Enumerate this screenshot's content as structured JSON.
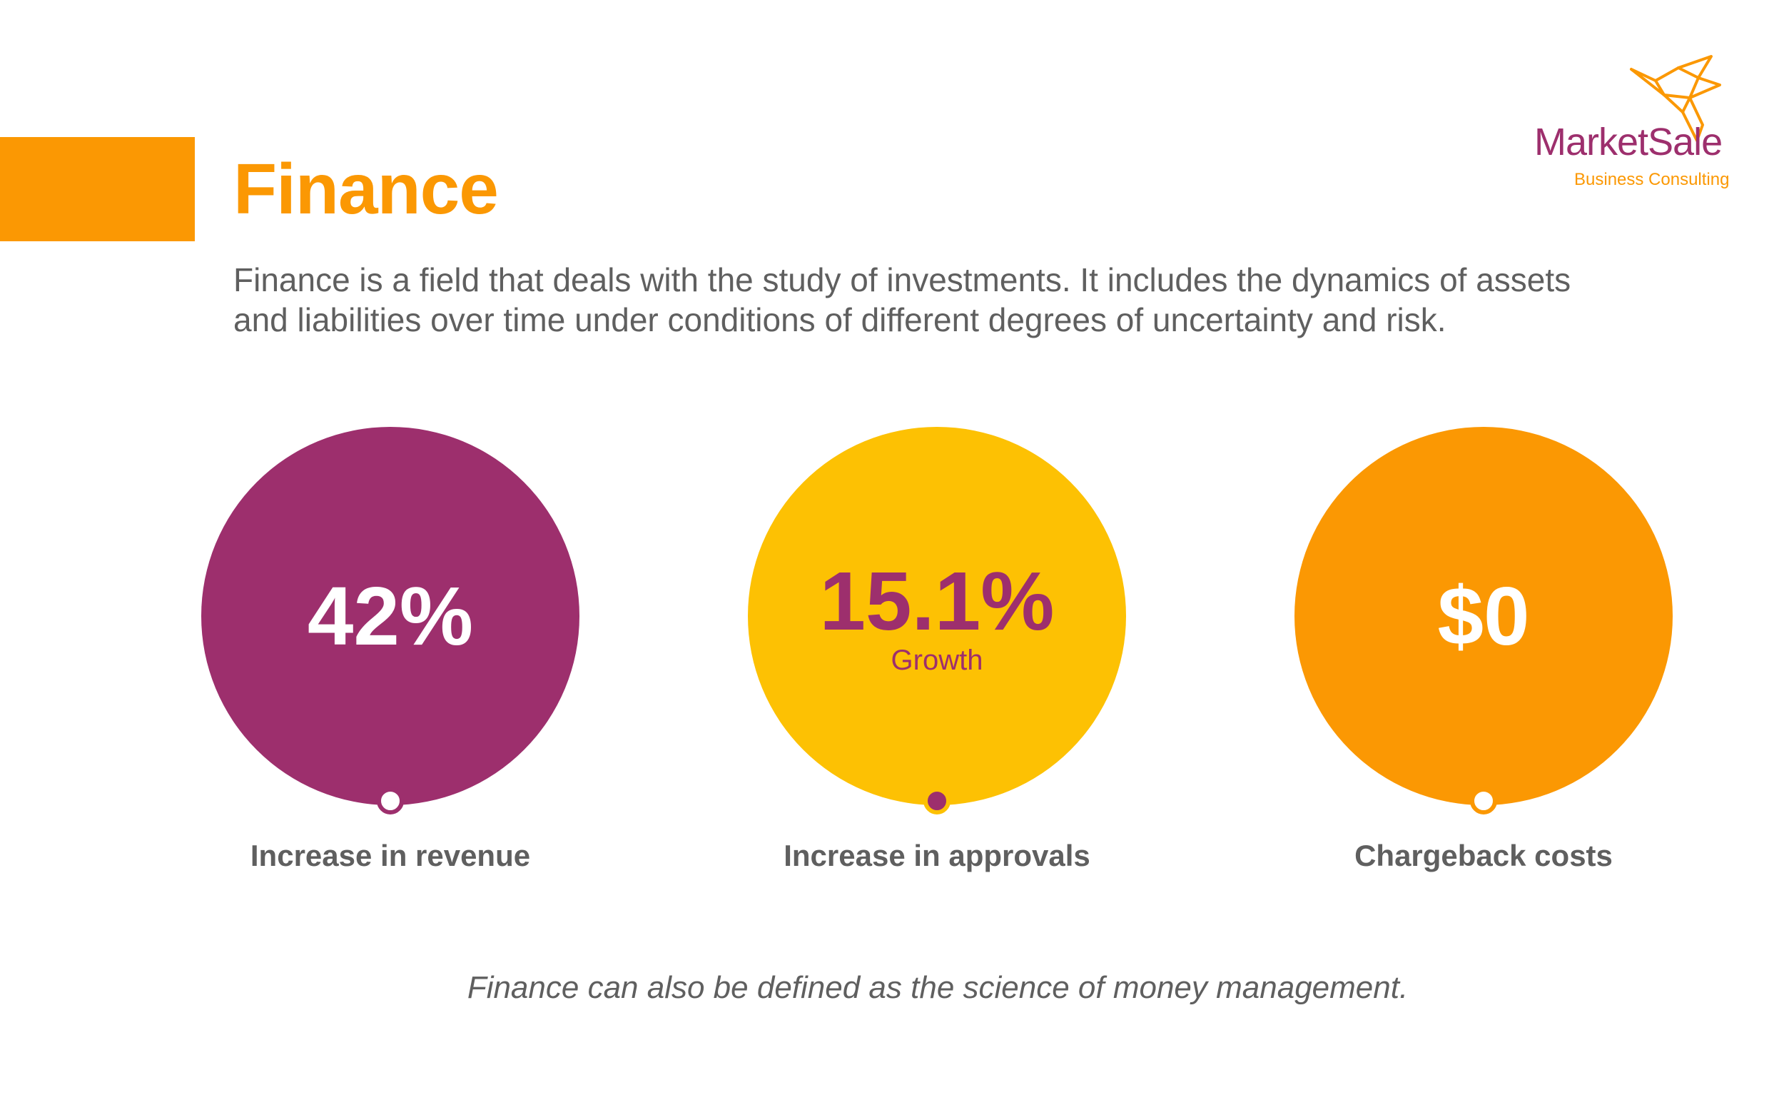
{
  "header": {
    "title": "Finance",
    "description": "Finance is a field that deals with the study of investments. It includes the dynamics of assets and liabilities over time under conditions of different degrees of uncertainty and risk."
  },
  "logo": {
    "name": "MarketSale",
    "tagline": "Business Consulting",
    "icon": "origami-bird-icon"
  },
  "stats": [
    {
      "value": "42%",
      "caption": "",
      "label": "Increase in revenue",
      "circle_color": "#9D2F6D",
      "text_color": "#FFFFFF",
      "dot_fill": "#FFFFFF",
      "dot_border": "#9D2F6D"
    },
    {
      "value": "15.1%",
      "caption": "Growth",
      "label": "Increase in approvals",
      "circle_color": "#FDC103",
      "text_color": "#9D2F6D",
      "dot_fill": "#9D2F6D",
      "dot_border": "#FDC103"
    },
    {
      "value": "$0",
      "caption": "",
      "label": "Chargeback costs",
      "circle_color": "#FB9803",
      "text_color": "#FFFFFF",
      "dot_fill": "#FFFFFF",
      "dot_border": "#FB9803"
    }
  ],
  "footer": {
    "note": "Finance can also be defined as the science of money management."
  },
  "colors": {
    "accent_orange": "#FB9803",
    "brand_purple": "#9D2F6D",
    "accent_yellow": "#FDC103",
    "body_text": "#5F5F5F"
  }
}
